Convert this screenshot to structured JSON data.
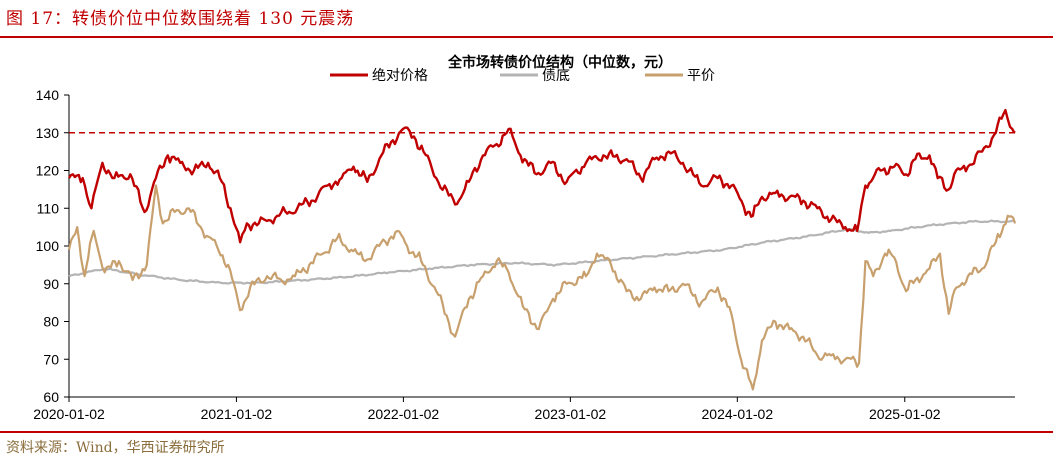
{
  "figure": {
    "title": "图 17：转债价位中位数围绕着 130 元震荡",
    "source": "资料来源：Wind，华西证券研究所"
  },
  "chart_data": {
    "type": "line",
    "title": "全市场转债价位结构（中位数，元）",
    "ylim": [
      60,
      140
    ],
    "y_ticks": [
      "60",
      "70",
      "80",
      "90",
      "100",
      "110",
      "120",
      "130",
      "140"
    ],
    "x_ticks": [
      "2020-01-02",
      "2021-01-02",
      "2022-01-02",
      "2023-01-02",
      "2024-01-02",
      "2025-01-02"
    ],
    "xlim": [
      "2020-01-02",
      "2025-08-31"
    ],
    "grid": false,
    "legend_position": "top",
    "reference_line": {
      "y": 130,
      "style": "dashed",
      "color": "#c00000"
    },
    "series": [
      {
        "name": "绝对价格",
        "color": "#c00000",
        "points": [
          [
            "2020-01-02",
            118
          ],
          [
            "2020-02-01",
            118
          ],
          [
            "2020-02-20",
            110
          ],
          [
            "2020-03-15",
            122
          ],
          [
            "2020-04-10",
            118
          ],
          [
            "2020-05-15",
            119
          ],
          [
            "2020-06-15",
            109
          ],
          [
            "2020-07-10",
            118
          ],
          [
            "2020-08-05",
            124
          ],
          [
            "2020-09-01",
            122
          ],
          [
            "2020-10-01",
            120
          ],
          [
            "2020-11-01",
            122
          ],
          [
            "2020-12-01",
            117
          ],
          [
            "2020-12-20",
            110
          ],
          [
            "2021-01-10",
            101
          ],
          [
            "2021-01-25",
            106
          ],
          [
            "2021-02-20",
            106
          ],
          [
            "2021-04-01",
            108
          ],
          [
            "2021-05-15",
            110
          ],
          [
            "2021-06-15",
            112
          ],
          [
            "2021-07-20",
            116
          ],
          [
            "2021-08-20",
            118
          ],
          [
            "2021-09-15",
            121
          ],
          [
            "2021-10-15",
            117
          ],
          [
            "2021-11-15",
            124
          ],
          [
            "2021-12-10",
            128
          ],
          [
            "2022-01-01",
            131
          ],
          [
            "2022-01-25",
            129
          ],
          [
            "2022-02-15",
            125
          ],
          [
            "2022-03-15",
            118
          ],
          [
            "2022-04-25",
            111
          ],
          [
            "2022-05-25",
            117
          ],
          [
            "2022-06-25",
            124
          ],
          [
            "2022-07-25",
            127
          ],
          [
            "2022-08-20",
            131
          ],
          [
            "2022-09-15",
            124
          ],
          [
            "2022-10-20",
            119
          ],
          [
            "2022-11-20",
            122
          ],
          [
            "2022-12-25",
            117
          ],
          [
            "2023-02-05",
            122
          ],
          [
            "2023-03-15",
            124
          ],
          [
            "2023-05-05",
            123
          ],
          [
            "2023-06-05",
            118
          ],
          [
            "2023-07-05",
            123
          ],
          [
            "2023-08-05",
            125
          ],
          [
            "2023-09-05",
            122
          ],
          [
            "2023-10-15",
            116
          ],
          [
            "2023-11-20",
            118
          ],
          [
            "2023-12-20",
            116
          ],
          [
            "2024-01-25",
            109
          ],
          [
            "2024-02-05",
            108
          ],
          [
            "2024-02-25",
            113
          ],
          [
            "2024-03-25",
            114
          ],
          [
            "2024-04-25",
            113
          ],
          [
            "2024-05-25",
            112
          ],
          [
            "2024-06-25",
            110
          ],
          [
            "2024-07-25",
            107
          ],
          [
            "2024-08-25",
            105
          ],
          [
            "2024-09-20",
            104
          ],
          [
            "2024-10-08",
            116
          ],
          [
            "2024-11-10",
            120
          ],
          [
            "2024-12-10",
            121
          ],
          [
            "2025-01-05",
            119
          ],
          [
            "2025-01-25",
            123
          ],
          [
            "2025-02-25",
            124
          ],
          [
            "2025-03-15",
            118
          ],
          [
            "2025-04-08",
            115
          ],
          [
            "2025-04-20",
            119
          ],
          [
            "2025-05-20",
            121
          ],
          [
            "2025-06-20",
            125
          ],
          [
            "2025-07-20",
            130
          ],
          [
            "2025-08-10",
            136
          ],
          [
            "2025-08-25",
            131
          ],
          [
            "2025-08-31",
            130
          ]
        ]
      },
      {
        "name": "债底",
        "color": "#b4b4b4",
        "points": [
          [
            "2020-01-02",
            92
          ],
          [
            "2020-03-20",
            94
          ],
          [
            "2020-06-01",
            92.5
          ],
          [
            "2020-09-01",
            91
          ],
          [
            "2020-12-01",
            90.2
          ],
          [
            "2021-03-01",
            90.3
          ],
          [
            "2021-06-01",
            91
          ],
          [
            "2021-09-01",
            91.8
          ],
          [
            "2021-12-01",
            93
          ],
          [
            "2022-03-01",
            94
          ],
          [
            "2022-06-01",
            95
          ],
          [
            "2022-09-01",
            95.5
          ],
          [
            "2022-12-01",
            95
          ],
          [
            "2023-03-01",
            96
          ],
          [
            "2023-06-01",
            97
          ],
          [
            "2023-09-01",
            98
          ],
          [
            "2023-12-01",
            99
          ],
          [
            "2024-03-01",
            101
          ],
          [
            "2024-06-01",
            102.5
          ],
          [
            "2024-09-01",
            104.5
          ],
          [
            "2024-10-15",
            103.5
          ],
          [
            "2024-12-01",
            104
          ],
          [
            "2025-03-01",
            105.5
          ],
          [
            "2025-06-01",
            106.5
          ],
          [
            "2025-08-31",
            106.5
          ]
        ]
      },
      {
        "name": "平价",
        "color": "#c8a06e",
        "points": [
          [
            "2020-01-02",
            99
          ],
          [
            "2020-01-20",
            105
          ],
          [
            "2020-02-05",
            92
          ],
          [
            "2020-02-25",
            104
          ],
          [
            "2020-03-20",
            93
          ],
          [
            "2020-04-20",
            96
          ],
          [
            "2020-05-20",
            91
          ],
          [
            "2020-06-20",
            95
          ],
          [
            "2020-07-10",
            116
          ],
          [
            "2020-07-25",
            106
          ],
          [
            "2020-08-20",
            109
          ],
          [
            "2020-09-20",
            110
          ],
          [
            "2020-10-20",
            104
          ],
          [
            "2020-11-20",
            100
          ],
          [
            "2020-12-15",
            95
          ],
          [
            "2021-01-10",
            83
          ],
          [
            "2021-02-01",
            89
          ],
          [
            "2021-03-10",
            92
          ],
          [
            "2021-04-10",
            91
          ],
          [
            "2021-05-10",
            92
          ],
          [
            "2021-06-10",
            95
          ],
          [
            "2021-07-10",
            98
          ],
          [
            "2021-08-10",
            102
          ],
          [
            "2021-09-10",
            99
          ],
          [
            "2021-10-10",
            96
          ],
          [
            "2021-11-10",
            100
          ],
          [
            "2021-12-20",
            104
          ],
          [
            "2022-01-10",
            100
          ],
          [
            "2022-02-10",
            96
          ],
          [
            "2022-03-15",
            88
          ],
          [
            "2022-04-25",
            76
          ],
          [
            "2022-05-25",
            86
          ],
          [
            "2022-06-25",
            92
          ],
          [
            "2022-07-25",
            96
          ],
          [
            "2022-08-20",
            93
          ],
          [
            "2022-09-20",
            84
          ],
          [
            "2022-10-25",
            78
          ],
          [
            "2022-11-25",
            86
          ],
          [
            "2022-12-25",
            90
          ],
          [
            "2023-02-05",
            92
          ],
          [
            "2023-03-01",
            98
          ],
          [
            "2023-04-01",
            95
          ],
          [
            "2023-05-05",
            88
          ],
          [
            "2023-06-05",
            86
          ],
          [
            "2023-07-05",
            89
          ],
          [
            "2023-08-05",
            88
          ],
          [
            "2023-09-05",
            90
          ],
          [
            "2023-10-15",
            85
          ],
          [
            "2023-11-20",
            89
          ],
          [
            "2023-12-20",
            82
          ],
          [
            "2024-01-10",
            70
          ],
          [
            "2024-02-05",
            62
          ],
          [
            "2024-02-25",
            75
          ],
          [
            "2024-03-25",
            80
          ],
          [
            "2024-04-25",
            78
          ],
          [
            "2024-05-25",
            76
          ],
          [
            "2024-06-25",
            71
          ],
          [
            "2024-07-25",
            71
          ],
          [
            "2024-08-25",
            70
          ],
          [
            "2024-09-24",
            69
          ],
          [
            "2024-10-08",
            96
          ],
          [
            "2024-10-25",
            92
          ],
          [
            "2024-11-20",
            98
          ],
          [
            "2024-12-10",
            97
          ],
          [
            "2025-01-05",
            88
          ],
          [
            "2025-01-25",
            91
          ],
          [
            "2025-02-25",
            94
          ],
          [
            "2025-03-20",
            98
          ],
          [
            "2025-04-08",
            82
          ],
          [
            "2025-04-25",
            89
          ],
          [
            "2025-05-20",
            92
          ],
          [
            "2025-06-20",
            94
          ],
          [
            "2025-07-20",
            101
          ],
          [
            "2025-08-15",
            108
          ],
          [
            "2025-08-31",
            106
          ]
        ]
      }
    ]
  }
}
